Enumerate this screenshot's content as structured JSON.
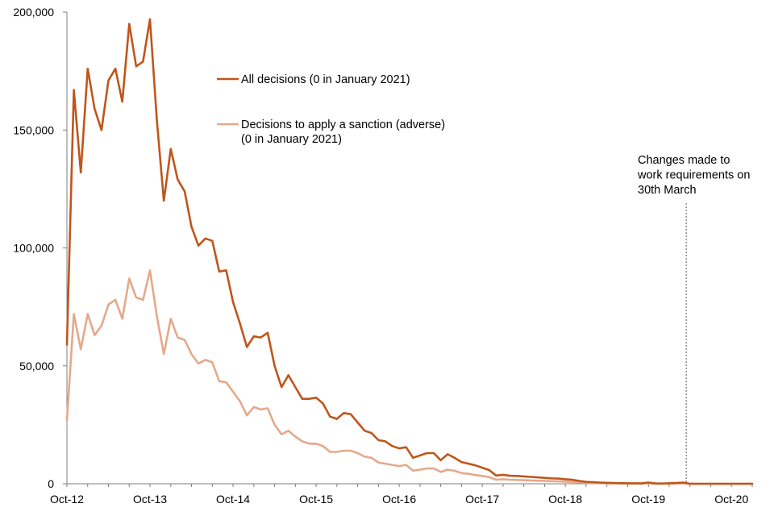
{
  "chart_data": {
    "type": "line",
    "title": "",
    "xlabel": "",
    "ylabel": "",
    "ylim": [
      0,
      200000
    ],
    "grid": false,
    "legend_position": "top-center",
    "y_ticks": [
      0,
      50000,
      100000,
      150000,
      200000
    ],
    "y_tick_labels": [
      "0",
      "50,000",
      "100,000",
      "150,000",
      "200,000"
    ],
    "x_tick_labels": [
      "Oct-12",
      "Oct-13",
      "Oct-14",
      "Oct-15",
      "Oct-16",
      "Oct-17",
      "Oct-18",
      "Oct-19",
      "Oct-20"
    ],
    "x_tick_month_index": [
      0,
      12,
      24,
      36,
      48,
      60,
      72,
      84,
      96
    ],
    "x_range_months": [
      0,
      99
    ],
    "series": [
      {
        "name": "All decisions",
        "legend_lines": [
          "All decisions (0 in January 2021)"
        ],
        "color": "#c0561b",
        "values": [
          59000,
          167000,
          132000,
          176000,
          159000,
          150000,
          171000,
          176000,
          162000,
          195000,
          177000,
          179000,
          197000,
          154000,
          120000,
          142000,
          129000,
          124000,
          109000,
          101000,
          104000,
          103000,
          90000,
          90500,
          77000,
          68000,
          58000,
          62500,
          62000,
          64000,
          50000,
          41000,
          46000,
          41000,
          36000,
          36000,
          36500,
          34000,
          28500,
          27500,
          30000,
          29500,
          26000,
          22500,
          21500,
          18500,
          18000,
          16000,
          15000,
          15500,
          11000,
          12000,
          13000,
          13000,
          10000,
          12500,
          11000,
          9200,
          8500,
          7800,
          6800,
          5800,
          3500,
          3800,
          3400,
          3300,
          3100,
          2900,
          2700,
          2500,
          2300,
          2200,
          1900,
          1700,
          1200,
          800,
          700,
          500,
          400,
          300,
          250,
          200,
          200,
          150,
          500,
          150,
          100,
          200,
          300,
          500,
          0,
          0,
          0,
          0,
          0,
          0,
          0,
          0,
          0,
          0
        ]
      },
      {
        "name": "Decisions to apply a sanction (adverse)",
        "legend_lines": [
          "Decisions to apply a sanction (adverse)",
          "(0 in January 2021)"
        ],
        "color": "#e4a98a",
        "values": [
          27000,
          72000,
          57000,
          72000,
          63000,
          67000,
          76000,
          78000,
          70000,
          87000,
          79000,
          78000,
          90500,
          71000,
          55000,
          70000,
          62000,
          61000,
          55000,
          51000,
          52500,
          51500,
          43500,
          43000,
          39000,
          35000,
          29000,
          32500,
          31500,
          32000,
          25000,
          21000,
          22500,
          20000,
          18000,
          17000,
          17000,
          16000,
          13500,
          13500,
          14000,
          14000,
          13000,
          11500,
          11000,
          9000,
          8500,
          8000,
          7500,
          8000,
          5500,
          6000,
          6500,
          6500,
          5000,
          6000,
          5500,
          4500,
          4200,
          3700,
          3300,
          2800,
          1700,
          1900,
          1700,
          1600,
          1500,
          1400,
          1300,
          1200,
          1100,
          1000,
          900,
          800,
          600,
          400,
          350,
          250,
          200,
          150,
          120,
          100,
          100,
          80,
          250,
          80,
          50,
          100,
          150,
          250,
          0,
          0,
          0,
          0,
          0,
          0,
          0,
          0,
          0,
          0
        ]
      }
    ],
    "annotation": {
      "lines": [
        "Changes made to",
        "work requirements  on",
        "30th March"
      ],
      "month_index": 89
    }
  }
}
